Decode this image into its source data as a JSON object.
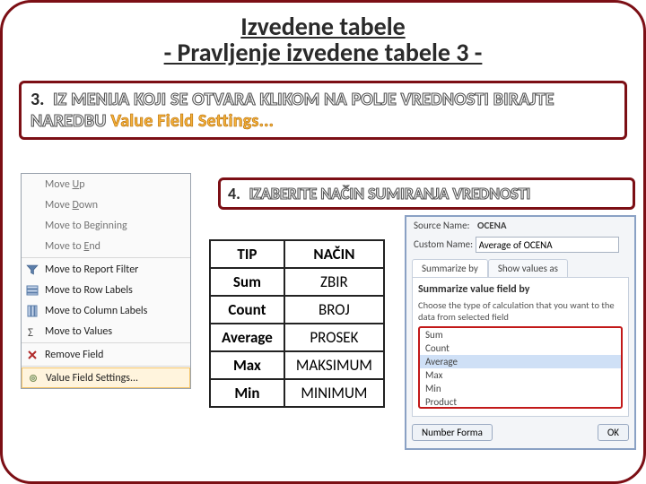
{
  "title": {
    "line1": "Izvedene tabele",
    "line2": "- Pravljenje izvedene tabele 3 -"
  },
  "step3": {
    "num": "3.",
    "text": "IZ MENIJA KOJI SE OTVARA KLIKOM NA POLJE VREDNOSTI BIRAJTE NAREDBU ",
    "highlight": "Value Field Settings..."
  },
  "step4": {
    "num": "4.",
    "text": "IZABERITE NAČIN SUMIRANJA VREDNOSTI"
  },
  "contextMenu": {
    "items": [
      {
        "label": "Move Up",
        "enabled": false,
        "underlineIdx": 5,
        "icon": null
      },
      {
        "label": "Move Down",
        "enabled": false,
        "underlineIdx": 5,
        "icon": null
      },
      {
        "label": "Move to Beginning",
        "enabled": false,
        "underlineIdx": null,
        "icon": null
      },
      {
        "label": "Move to End",
        "enabled": false,
        "underlineIdx": 8,
        "icon": null
      },
      {
        "sep": true
      },
      {
        "label": "Move to Report Filter",
        "enabled": true,
        "icon": "funnel"
      },
      {
        "label": "Move to Row Labels",
        "enabled": true,
        "icon": "rows"
      },
      {
        "label": "Move to Column Labels",
        "enabled": true,
        "icon": "cols"
      },
      {
        "label": "Move to Values",
        "enabled": true,
        "icon": "sigma"
      },
      {
        "sep": true
      },
      {
        "label": "Remove Field",
        "enabled": true,
        "icon": "x"
      },
      {
        "sep": true
      },
      {
        "label": "Value Field Settings...",
        "enabled": true,
        "icon": "gear",
        "highlight": true
      }
    ]
  },
  "table": {
    "headers": [
      "TIP",
      "NAČIN"
    ],
    "rows": [
      [
        "Sum",
        "ZBIR"
      ],
      [
        "Count",
        "BROJ"
      ],
      [
        "Average",
        "PROSEK"
      ],
      [
        "Max",
        "MAKSIMUM"
      ],
      [
        "Min",
        "MINIMUM"
      ]
    ]
  },
  "dialog": {
    "sourceLabel": "Source Name:",
    "sourceVal": "OCENA",
    "customLabel": "Custom Name:",
    "customVal": "Average of OCENA",
    "tabs": [
      "Summarize by",
      "Show values as"
    ],
    "secTitle": "Summarize value field by",
    "secHelp": "Choose the type of calculation that you want to the data from selected field",
    "options": [
      "Sum",
      "Count",
      "Average",
      "Max",
      "Min",
      "Product"
    ],
    "selected": "Average",
    "numFmt": "Number Forma",
    "ok": "OK"
  },
  "colors": {
    "frame": "#7c0f15",
    "highlight": "#f6b23c",
    "listBorder": "#c21919"
  }
}
